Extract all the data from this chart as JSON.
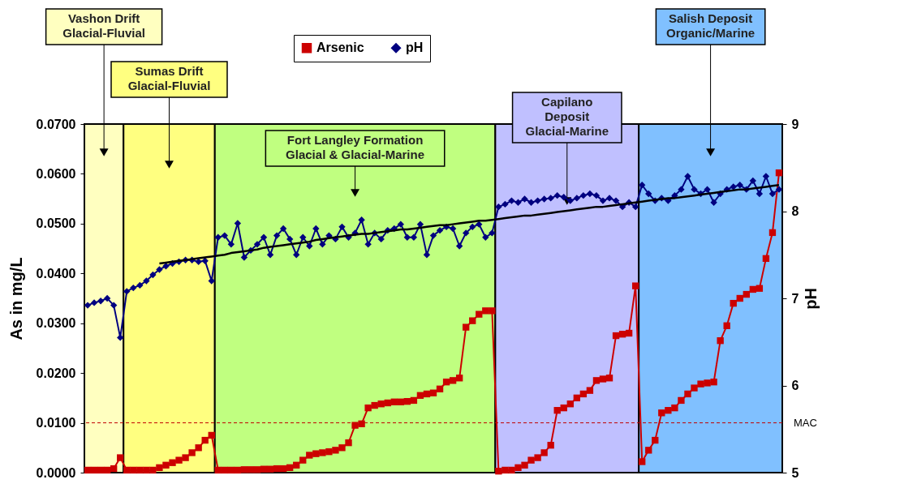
{
  "chart_data": {
    "type": "line",
    "categories": [
      null,
      null,
      null,
      null,
      null,
      null,
      null,
      null,
      null,
      null,
      null,
      null,
      null,
      null,
      null,
      null,
      null,
      null,
      null,
      null,
      null,
      null,
      null,
      null,
      null,
      null,
      null,
      null,
      null,
      null,
      null,
      null,
      null,
      null,
      null,
      null,
      null,
      null,
      null,
      null,
      null,
      null,
      null,
      null,
      null,
      null,
      null,
      null,
      null,
      null,
      null,
      null,
      null,
      null,
      null,
      null,
      null,
      null,
      null,
      null,
      null,
      null,
      null,
      null,
      null,
      null,
      null,
      null,
      null,
      null,
      null,
      null,
      null,
      null,
      null,
      null,
      null,
      null,
      null,
      null,
      null,
      null,
      null,
      null,
      null,
      null,
      null,
      null,
      null,
      null,
      null,
      null,
      null,
      null,
      null,
      null,
      null,
      null,
      null,
      null,
      null,
      null,
      null,
      null,
      null,
      null,
      null
    ],
    "ylabel": "As in mg/L",
    "y2label": "pH",
    "ylim": [
      0,
      0.07
    ],
    "yticks": [
      {
        "value": 0,
        "label": "0.0000"
      },
      {
        "value": 0.01,
        "label": "0.0100"
      },
      {
        "value": 0.02,
        "label": "0.0200"
      },
      {
        "value": 0.03,
        "label": "0.0300"
      },
      {
        "value": 0.04,
        "label": "0.0400"
      },
      {
        "value": 0.05,
        "label": "0.0500"
      },
      {
        "value": 0.06,
        "label": "0.0600"
      },
      {
        "value": 0.07,
        "label": "0.0700"
      }
    ],
    "y2lim": [
      5,
      9
    ],
    "y2ticks": [
      5,
      6,
      7,
      8,
      9
    ],
    "legend": "top",
    "series": [
      {
        "name": "Arsenic",
        "color": "#cc0000",
        "marker": "square",
        "values": [
          0.0005,
          0.0005,
          0.0005,
          0.0005,
          0.0008,
          0.003,
          0.0005,
          0.0005,
          0.0005,
          0.0005,
          0.0005,
          0.001,
          0.0015,
          0.002,
          0.0025,
          0.003,
          0.004,
          0.005,
          0.0065,
          0.0075,
          0.0005,
          0.0005,
          0.0005,
          0.0005,
          0.0006,
          0.0006,
          0.0006,
          0.0007,
          0.0007,
          0.0008,
          0.0008,
          0.001,
          0.0015,
          0.0025,
          0.0035,
          0.0038,
          0.004,
          0.0042,
          0.0045,
          0.005,
          0.006,
          0.0095,
          0.0098,
          0.013,
          0.0135,
          0.0138,
          0.014,
          0.0142,
          0.0142,
          0.0143,
          0.0145,
          0.0155,
          0.0158,
          0.016,
          0.0168,
          0.0182,
          0.0185,
          0.019,
          0.0292,
          0.0305,
          0.0318,
          0.0325,
          0.0325,
          0.0003,
          0.0005,
          0.0005,
          0.001,
          0.0015,
          0.0025,
          0.003,
          0.004,
          0.0055,
          0.0125,
          0.013,
          0.0138,
          0.015,
          0.0158,
          0.0165,
          0.0185,
          0.0188,
          0.019,
          0.0275,
          0.0278,
          0.028,
          0.0375,
          0.0022,
          0.0045,
          0.0065,
          0.012,
          0.0125,
          0.013,
          0.0145,
          0.0158,
          0.017,
          0.0178,
          0.018,
          0.0182,
          0.0265,
          0.0295,
          0.034,
          0.035,
          0.0358,
          0.0368,
          0.037,
          0.043,
          0.0482,
          0.0602
        ]
      },
      {
        "name": "pH",
        "color": "#000080",
        "marker": "diamond",
        "axis": "y2",
        "values": [
          6.92,
          6.95,
          6.97,
          7.0,
          6.92,
          6.55,
          7.08,
          7.12,
          7.15,
          7.2,
          7.27,
          7.33,
          7.37,
          7.4,
          7.42,
          7.44,
          7.44,
          7.42,
          7.43,
          7.2,
          7.7,
          7.72,
          7.62,
          7.86,
          7.47,
          7.55,
          7.62,
          7.7,
          7.5,
          7.72,
          7.8,
          7.68,
          7.5,
          7.7,
          7.6,
          7.8,
          7.62,
          7.72,
          7.68,
          7.82,
          7.7,
          7.75,
          7.9,
          7.62,
          7.75,
          7.68,
          7.78,
          7.8,
          7.85,
          7.7,
          7.7,
          7.85,
          7.5,
          7.72,
          7.78,
          7.82,
          7.8,
          7.6,
          7.75,
          7.82,
          7.85,
          7.7,
          7.75,
          8.05,
          8.08,
          8.12,
          8.1,
          8.14,
          8.1,
          8.12,
          8.14,
          8.15,
          8.18,
          8.16,
          8.12,
          8.15,
          8.18,
          8.2,
          8.18,
          8.12,
          8.15,
          8.12,
          8.05,
          8.1,
          8.05,
          8.3,
          8.2,
          8.12,
          8.15,
          8.12,
          8.18,
          8.25,
          8.4,
          8.25,
          8.2,
          8.25,
          8.1,
          8.2,
          8.25,
          8.28,
          8.3,
          8.25,
          8.35,
          8.2,
          8.4,
          8.2,
          8.25
        ]
      },
      {
        "type": "line",
        "color": "#000000",
        "marker": "none",
        "axis": "y2",
        "values": [
          null,
          null,
          null,
          null,
          null,
          null,
          null,
          null,
          null,
          null,
          null,
          7.4,
          7.41,
          7.42,
          7.43,
          7.44,
          7.45,
          7.46,
          7.47,
          7.48,
          7.49,
          7.5,
          7.52,
          7.53,
          7.54,
          7.55,
          7.56,
          7.58,
          7.59,
          7.6,
          7.61,
          7.62,
          7.63,
          7.64,
          7.65,
          7.67,
          7.68,
          7.69,
          7.7,
          7.71,
          7.72,
          7.73,
          7.74,
          7.74,
          7.75,
          7.76,
          7.77,
          7.78,
          7.79,
          7.79,
          7.8,
          7.81,
          7.82,
          7.83,
          7.84,
          7.84,
          7.85,
          7.86,
          7.87,
          7.88,
          7.89,
          7.89,
          7.9,
          7.91,
          7.92,
          7.93,
          7.94,
          7.95,
          7.95,
          7.96,
          7.97,
          7.98,
          7.99,
          8.0,
          8.01,
          8.02,
          8.03,
          8.04,
          8.05,
          8.05,
          8.06,
          8.07,
          8.08,
          8.09,
          8.1,
          8.11,
          8.12,
          8.13,
          8.14,
          8.15,
          8.15,
          8.16,
          8.17,
          8.18,
          8.19,
          8.2,
          8.21,
          8.22,
          8.23,
          8.24,
          8.25,
          8.25,
          8.26,
          8.27,
          8.28,
          8.29,
          8.3
        ]
      }
    ],
    "ref_lines": [
      {
        "axis": "y",
        "value": 0.01,
        "label": "MAC",
        "color": "#c00000",
        "line_style": "dashed"
      }
    ],
    "annotations": [
      "Vashon Drift\nGlacial-Fluvial",
      "Sumas Drift\nGlacial-Fluvial",
      "Fort Langley Formation\nGlacial & Glacial-Marine",
      "Capilano\nDeposit\nGlacial-Marine",
      "Salish Deposit\nOrganic/Marine"
    ]
  }
}
